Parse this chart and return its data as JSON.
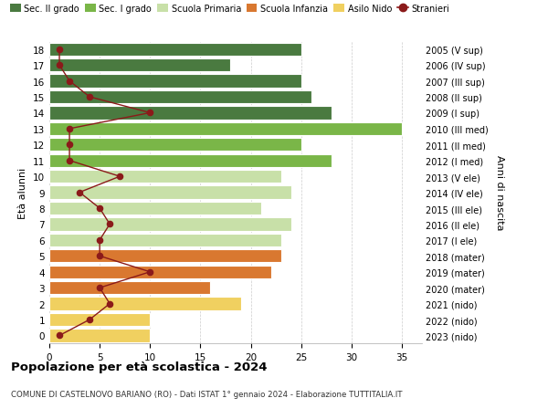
{
  "ages": [
    18,
    17,
    16,
    15,
    14,
    13,
    12,
    11,
    10,
    9,
    8,
    7,
    6,
    5,
    4,
    3,
    2,
    1,
    0
  ],
  "right_labels": [
    "2005 (V sup)",
    "2006 (IV sup)",
    "2007 (III sup)",
    "2008 (II sup)",
    "2009 (I sup)",
    "2010 (III med)",
    "2011 (II med)",
    "2012 (I med)",
    "2013 (V ele)",
    "2014 (IV ele)",
    "2015 (III ele)",
    "2016 (II ele)",
    "2017 (I ele)",
    "2018 (mater)",
    "2019 (mater)",
    "2020 (mater)",
    "2021 (nido)",
    "2022 (nido)",
    "2023 (nido)"
  ],
  "bar_values": [
    25,
    18,
    25,
    26,
    28,
    35,
    25,
    28,
    23,
    24,
    21,
    24,
    23,
    23,
    22,
    16,
    19,
    10,
    10
  ],
  "bar_colors": [
    "#4a7a40",
    "#4a7a40",
    "#4a7a40",
    "#4a7a40",
    "#4a7a40",
    "#7ab648",
    "#7ab648",
    "#7ab648",
    "#c8e0a8",
    "#c8e0a8",
    "#c8e0a8",
    "#c8e0a8",
    "#c8e0a8",
    "#d97830",
    "#d97830",
    "#d97830",
    "#f0d060",
    "#f0d060",
    "#f0d060"
  ],
  "stranieri_values": [
    1,
    1,
    2,
    4,
    10,
    2,
    2,
    2,
    7,
    3,
    5,
    6,
    5,
    5,
    10,
    5,
    6,
    4,
    1
  ],
  "stranieri_color": "#8b1a1a",
  "legend_labels": [
    "Sec. II grado",
    "Sec. I grado",
    "Scuola Primaria",
    "Scuola Infanzia",
    "Asilo Nido",
    "Stranieri"
  ],
  "legend_colors": [
    "#4a7a40",
    "#7ab648",
    "#c8e0a8",
    "#d97830",
    "#f0d060",
    "#8b1a1a"
  ],
  "title": "Popolazione per età scolastica - 2024",
  "subtitle": "COMUNE DI CASTELNOVO BARIANO (RO) - Dati ISTAT 1° gennaio 2024 - Elaborazione TUTTITALIA.IT",
  "ylabel_left": "Età alunni",
  "ylabel_right": "Anni di nascita",
  "xlim": [
    0,
    37
  ],
  "background_color": "#ffffff",
  "bar_height": 0.82
}
